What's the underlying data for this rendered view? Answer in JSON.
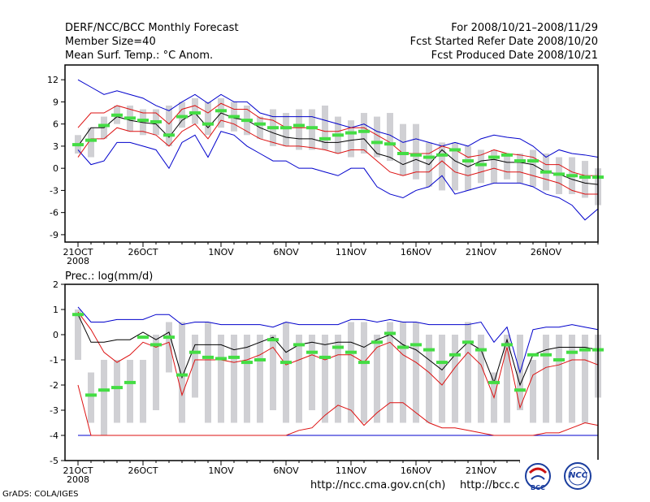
{
  "header": {
    "left": [
      "DERF/NCC/BCC Monthly Forecast",
      "Member Size=40",
      "Mean Surf. Temp.: °C Anom."
    ],
    "right": [
      "For 2008/10/21–2008/11/29",
      "Fcst Started Refer Date 2008/10/20",
      "Fcst Produced Date 2008/10/21"
    ]
  },
  "footer": {
    "url1": "http://ncc.cma.gov.cn(ch)",
    "url2": "http://bcc.cma.gov.cn",
    "grads": "GrADS: COLA/IGES",
    "logo1_text": "BCC",
    "logo2_text": "NCC"
  },
  "colors": {
    "box": "#d0d0d4",
    "median": "#44dd44",
    "mean": "#000000",
    "spread": "#dd1111",
    "extreme": "#0000cc"
  },
  "chart_data": [
    {
      "type": "box-ensemble",
      "title": "Mean Surf. Temp.: °C Anom.",
      "ylim": [
        -10,
        14
      ],
      "yticks": [
        12,
        9,
        6,
        3,
        0,
        -3,
        -6,
        -9
      ],
      "xticks": [
        {
          "day": 0,
          "label": "21OCT"
        },
        {
          "day": 5,
          "label": "26OCT"
        },
        {
          "day": 11,
          "label": "1NOV"
        },
        {
          "day": 16,
          "label": "6NOV"
        },
        {
          "day": 21,
          "label": "11NOV"
        },
        {
          "day": 26,
          "label": "16NOV"
        },
        {
          "day": 31,
          "label": "21NOV"
        },
        {
          "day": 36,
          "label": "26NOV"
        }
      ],
      "year_label": "2008",
      "box_low": [
        2.0,
        1.5,
        4.0,
        6.0,
        5.0,
        4.5,
        4.5,
        3.0,
        5.5,
        6.0,
        4.5,
        5.5,
        5.0,
        4.5,
        4.0,
        3.0,
        3.0,
        2.5,
        2.5,
        2.5,
        2.0,
        1.5,
        2.0,
        1.5,
        1.0,
        -1.0,
        -1.5,
        -2.5,
        -3.0,
        -3.0,
        -3.0,
        -2.0,
        -2.0,
        -1.5,
        -2.0,
        -2.5,
        -3.0,
        -3.5,
        -3.5,
        -4.0,
        -5.0
      ],
      "box_high": [
        4.5,
        5.5,
        7.0,
        8.5,
        8.5,
        8.0,
        8.0,
        8.5,
        9.0,
        9.5,
        9.0,
        9.5,
        9.0,
        8.5,
        7.0,
        8.0,
        7.5,
        8.0,
        8.0,
        8.5,
        7.0,
        6.5,
        7.5,
        7.0,
        7.5,
        6.0,
        6.0,
        3.5,
        3.5,
        3.5,
        3.0,
        2.5,
        2.5,
        2.0,
        2.0,
        2.5,
        2.0,
        1.5,
        1.5,
        1.0,
        0.0
      ],
      "median": [
        3.2,
        3.8,
        5.8,
        7.2,
        6.8,
        6.5,
        6.3,
        4.5,
        7.0,
        7.5,
        6.0,
        7.8,
        7.0,
        6.5,
        6.0,
        5.5,
        5.5,
        5.8,
        5.5,
        4.0,
        4.5,
        4.8,
        5.0,
        3.5,
        3.3,
        2.0,
        1.8,
        1.5,
        1.8,
        2.5,
        1.0,
        0.5,
        1.5,
        1.8,
        1.0,
        1.0,
        -0.5,
        -0.8,
        -1.0,
        -1.2,
        -1.2
      ],
      "mean": [
        3.0,
        5.5,
        5.5,
        7.0,
        6.5,
        6.2,
        6.0,
        4.2,
        6.5,
        7.5,
        5.5,
        7.5,
        6.8,
        6.5,
        5.5,
        4.8,
        4.2,
        4.0,
        4.0,
        3.5,
        3.5,
        3.8,
        4.0,
        2.0,
        1.5,
        0.5,
        1.2,
        0.5,
        2.5,
        1.0,
        0.2,
        1.0,
        1.2,
        0.8,
        0.8,
        0.5,
        -0.5,
        -0.8,
        -1.5,
        -2.0,
        -2.2
      ],
      "upper": [
        5.5,
        7.5,
        7.5,
        8.5,
        8.0,
        7.5,
        7.5,
        6.0,
        8.0,
        8.5,
        7.5,
        8.8,
        8.0,
        8.0,
        6.8,
        6.5,
        5.5,
        5.5,
        5.5,
        5.0,
        5.0,
        5.5,
        5.5,
        4.5,
        3.5,
        2.0,
        2.0,
        2.0,
        3.0,
        2.5,
        1.5,
        1.8,
        2.5,
        2.0,
        1.8,
        1.5,
        0.5,
        0.5,
        -0.5,
        -1.0,
        -1.0
      ],
      "lower": [
        1.5,
        4.0,
        4.0,
        5.5,
        5.0,
        5.0,
        4.5,
        3.0,
        5.0,
        6.0,
        4.0,
        6.5,
        6.0,
        5.0,
        4.0,
        3.5,
        3.0,
        3.0,
        2.8,
        2.5,
        2.0,
        2.5,
        2.5,
        1.0,
        -0.5,
        -1.0,
        -0.5,
        -0.5,
        1.0,
        -0.5,
        -1.0,
        -0.5,
        0.0,
        -0.5,
        -0.5,
        -1.0,
        -1.5,
        -2.0,
        -3.0,
        -3.5,
        -3.5
      ],
      "max": [
        12.0,
        11.0,
        10.0,
        10.5,
        10.0,
        9.5,
        8.5,
        7.8,
        9.0,
        10.0,
        8.8,
        10.0,
        9.0,
        9.0,
        7.5,
        7.0,
        7.0,
        7.0,
        7.0,
        6.5,
        6.0,
        5.5,
        6.0,
        5.0,
        4.5,
        3.5,
        4.0,
        3.5,
        3.0,
        3.5,
        3.0,
        4.0,
        4.5,
        4.2,
        4.0,
        3.0,
        1.5,
        2.5,
        2.0,
        1.8,
        1.5
      ],
      "min": [
        2.5,
        0.5,
        1.0,
        3.5,
        3.5,
        3.0,
        2.5,
        0.0,
        3.5,
        4.5,
        1.5,
        5.0,
        4.5,
        3.0,
        2.0,
        1.0,
        1.0,
        0.0,
        0.0,
        -0.5,
        -1.0,
        0.0,
        0.0,
        -2.5,
        -3.5,
        -4.0,
        -3.0,
        -2.5,
        -1.0,
        -3.5,
        -3.0,
        -2.5,
        -2.0,
        -2.0,
        -2.0,
        -2.5,
        -3.5,
        -4.0,
        -5.0,
        -7.0,
        -5.5
      ]
    },
    {
      "type": "box-ensemble",
      "title": "Prec.: log(mm/d)",
      "ylim": [
        -5,
        2
      ],
      "yticks": [
        2,
        1,
        0,
        -1,
        -2,
        -3,
        -4,
        -5
      ],
      "xticks": [
        {
          "day": 0,
          "label": "21OCT"
        },
        {
          "day": 5,
          "label": "26OCT"
        },
        {
          "day": 11,
          "label": "1NOV"
        },
        {
          "day": 16,
          "label": "6NOV"
        },
        {
          "day": 21,
          "label": "11NOV"
        },
        {
          "day": 26,
          "label": "16NOV"
        },
        {
          "day": 31,
          "label": "21NOV"
        },
        {
          "day": 36,
          "label": "26NOV"
        }
      ],
      "year_label": "2008",
      "box_low": [
        -1.0,
        -3.5,
        -4.0,
        -3.5,
        -3.5,
        -3.5,
        -3.0,
        -1.5,
        -3.5,
        -2.5,
        -3.5,
        -3.5,
        -3.5,
        -3.5,
        -3.5,
        -3.0,
        -3.5,
        -3.5,
        -3.0,
        -3.5,
        -3.5,
        -3.5,
        -3.5,
        -3.5,
        -3.5,
        -3.5,
        -3.5,
        -3.5,
        -3.5,
        -3.5,
        -3.5,
        -3.5,
        -3.5,
        -3.5,
        -3.0,
        -3.5,
        -3.5,
        -3.5,
        -3.5,
        -3.5,
        -2.5
      ],
      "box_high": [
        1.0,
        -1.5,
        -1.0,
        -1.0,
        -1.0,
        -1.0,
        0.0,
        0.5,
        0.5,
        0.0,
        0.5,
        0.0,
        0.0,
        0.0,
        0.0,
        0.0,
        0.5,
        0.0,
        0.0,
        0.0,
        0.0,
        0.5,
        0.5,
        0.0,
        0.5,
        0.5,
        0.5,
        0.0,
        0.0,
        0.0,
        0.5,
        0.0,
        -1.5,
        0.0,
        0.0,
        -1.0,
        0.0,
        0.0,
        0.0,
        0.0,
        0.0
      ],
      "median": [
        0.8,
        -2.4,
        -2.2,
        -2.1,
        -1.9,
        -0.1,
        -0.4,
        -0.1,
        -1.6,
        -0.7,
        -0.9,
        -0.95,
        -0.9,
        -1.1,
        -1.0,
        -0.2,
        -1.1,
        -0.4,
        -0.7,
        -0.9,
        -0.5,
        -0.7,
        -1.1,
        -0.3,
        0.05,
        -0.5,
        -0.4,
        -0.6,
        -1.1,
        -0.8,
        -0.3,
        -0.6,
        -1.9,
        -0.4,
        -2.2,
        -0.8,
        -0.8,
        -1.0,
        -0.7,
        -0.6,
        -0.6
      ],
      "mean": [
        0.8,
        -0.3,
        -0.3,
        -0.2,
        -0.2,
        0.1,
        -0.2,
        0.1,
        -1.7,
        -0.4,
        -0.4,
        -0.4,
        -0.6,
        -0.5,
        -0.3,
        -0.1,
        -0.7,
        -0.4,
        -0.3,
        -0.4,
        -0.3,
        -0.3,
        -0.5,
        -0.2,
        0.0,
        -0.4,
        -0.6,
        -1.0,
        -1.4,
        -0.8,
        -0.3,
        -0.6,
        -1.9,
        -0.2,
        -2.0,
        -0.8,
        -0.6,
        -0.5,
        -0.5,
        -0.5,
        -0.6
      ],
      "upper": [
        0.9,
        0.2,
        -0.7,
        -1.1,
        -0.8,
        -0.3,
        -0.5,
        -0.3,
        -2.4,
        -1.0,
        -1.0,
        -1.0,
        -1.1,
        -1.0,
        -0.8,
        -0.5,
        -1.2,
        -1.0,
        -0.8,
        -1.0,
        -0.8,
        -0.8,
        -1.1,
        -0.5,
        -0.3,
        -0.8,
        -1.1,
        -1.5,
        -2.0,
        -1.3,
        -0.7,
        -1.2,
        -2.5,
        -0.5,
        -2.9,
        -1.6,
        -1.3,
        -1.2,
        -1.0,
        -1.0,
        -1.2
      ],
      "lower": [
        -2.0,
        -4.0,
        -4.0,
        -4.0,
        -4.0,
        -4.0,
        -4.0,
        -4.0,
        -4.0,
        -4.0,
        -4.0,
        -4.0,
        -4.0,
        -4.0,
        -4.0,
        -4.0,
        -4.0,
        -3.8,
        -3.7,
        -3.2,
        -2.8,
        -3.0,
        -3.6,
        -3.1,
        -2.7,
        -2.7,
        -3.1,
        -3.5,
        -3.7,
        -3.7,
        -3.8,
        -3.9,
        -4.0,
        -4.0,
        -4.0,
        -4.0,
        -3.9,
        -3.9,
        -3.7,
        -3.5,
        -3.6
      ],
      "max": [
        1.1,
        0.5,
        0.5,
        0.6,
        0.6,
        0.6,
        0.8,
        0.8,
        0.4,
        0.5,
        0.5,
        0.4,
        0.4,
        0.4,
        0.4,
        0.3,
        0.5,
        0.4,
        0.4,
        0.4,
        0.4,
        0.6,
        0.6,
        0.5,
        0.6,
        0.5,
        0.5,
        0.4,
        0.4,
        0.4,
        0.4,
        0.5,
        -0.3,
        0.3,
        -1.5,
        0.2,
        0.3,
        0.3,
        0.4,
        0.3,
        0.2
      ],
      "min": [
        -4.0,
        -4.0,
        -4.0,
        -4.0,
        -4.0,
        -4.0,
        -4.0,
        -4.0,
        -4.0,
        -4.0,
        -4.0,
        -4.0,
        -4.0,
        -4.0,
        -4.0,
        -4.0,
        -4.0,
        -4.0,
        -4.0,
        -4.0,
        -4.0,
        -4.0,
        -4.0,
        -4.0,
        -4.0,
        -4.0,
        -4.0,
        -4.0,
        -4.0,
        -4.0,
        -4.0,
        -4.0,
        -4.0,
        -4.0,
        -4.0,
        -4.0,
        -4.0,
        -4.0,
        -4.0,
        -4.0,
        -4.0
      ]
    }
  ]
}
